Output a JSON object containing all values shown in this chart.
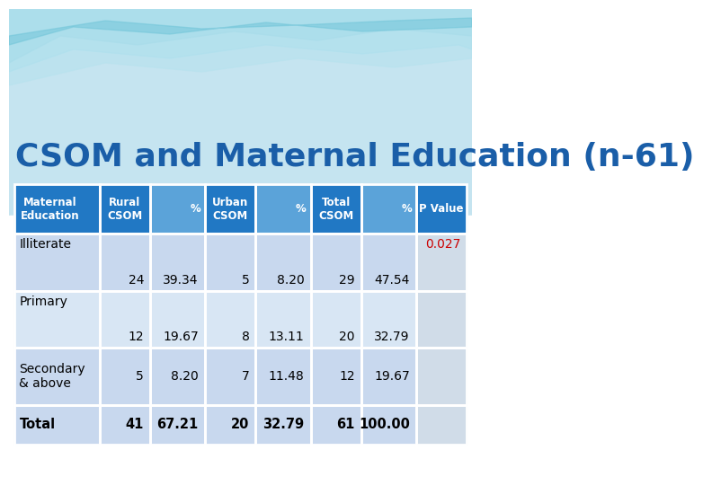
{
  "title": "CSOM and Maternal Education (n-61)",
  "title_color": "#1A5EA8",
  "title_fontsize": 26,
  "header_dark_bg": "#2178C4",
  "header_light_bg": "#5BA3D9",
  "header_text_color": "#FFFFFF",
  "row_bg_light": "#C8D8EE",
  "row_bg_lighter": "#D8E6F4",
  "total_row_bg": "#C0CFDF",
  "pvalue_col_bg": "#D0DCE8",
  "col_headers": [
    "Maternal\nEducation",
    "Rural\nCSOM",
    "%",
    "Urban\nCSOM",
    "%",
    "Total\nCSOM",
    "%",
    "P Value"
  ],
  "header_dark": [
    0,
    1,
    3,
    5,
    7
  ],
  "header_light": [
    2,
    4,
    6
  ],
  "col_widths_rel": [
    1.7,
    1.0,
    1.1,
    1.0,
    1.1,
    1.0,
    1.1,
    1.0
  ],
  "rows": [
    {
      "label": "Illiterate",
      "rural_csom": "24",
      "rural_pct": "39.34",
      "urban_csom": "5",
      "urban_pct": "8.20",
      "total_csom": "29",
      "total_pct": "47.54",
      "pvalue": "0.027",
      "pvalue_color": "#CC0000",
      "bold": false,
      "label_top": true,
      "nums_bottom": true
    },
    {
      "label": "Primary",
      "rural_csom": "12",
      "rural_pct": "19.67",
      "urban_csom": "8",
      "urban_pct": "13.11",
      "total_csom": "20",
      "total_pct": "32.79",
      "pvalue": "",
      "pvalue_color": "#000000",
      "bold": false,
      "label_top": true,
      "nums_bottom": true
    },
    {
      "label": "Secondary\n& above",
      "rural_csom": "5",
      "rural_pct": "8.20",
      "urban_csom": "7",
      "urban_pct": "11.48",
      "total_csom": "12",
      "total_pct": "19.67",
      "pvalue": "",
      "pvalue_color": "#000000",
      "bold": false,
      "label_top": false,
      "nums_bottom": false
    },
    {
      "label": "Total",
      "rural_csom": "41",
      "rural_pct": "67.21",
      "urban_csom": "20",
      "urban_pct": "32.79",
      "total_csom": "61",
      "total_pct": "100.00",
      "pvalue": "",
      "pvalue_color": "#000000",
      "bold": true,
      "label_top": false,
      "nums_bottom": false
    }
  ],
  "wave_colors": [
    "#A8D8E8",
    "#7FC8DC",
    "#B8E0EC"
  ],
  "bg_top": "#C8E8F4"
}
